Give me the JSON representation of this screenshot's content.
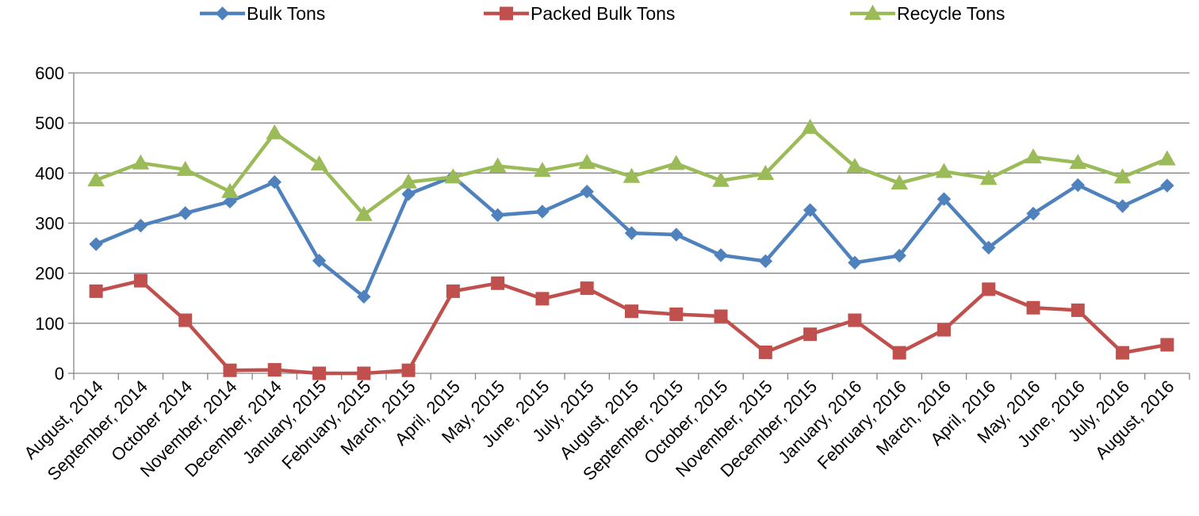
{
  "chart_data": {
    "type": "line",
    "title": "",
    "xlabel": "",
    "ylabel": "",
    "ylim": [
      0,
      600
    ],
    "yticks": [
      0,
      100,
      200,
      300,
      400,
      500,
      600
    ],
    "grid": true,
    "legend_position": "top",
    "categories": [
      "August, 2014",
      "September, 2014",
      "October 2014",
      "November, 2014",
      "December, 2014",
      "January, 2015",
      "February, 2015",
      "March, 2015",
      "April, 2015",
      "May, 2015",
      "June, 2015",
      "July, 2015",
      "August, 2015",
      "September, 2015",
      "October, 2015",
      "November, 2015",
      "December, 2015",
      "January, 2016",
      "February, 2016",
      "March, 2016",
      "April, 2016",
      "May, 2016",
      "June, 2016",
      "July, 2016",
      "August, 2016"
    ],
    "series": [
      {
        "name": "Bulk Tons",
        "color": "#4F81BD",
        "marker": "diamond",
        "values": [
          258,
          295,
          320,
          343,
          382,
          225,
          153,
          358,
          393,
          316,
          323,
          363,
          280,
          277,
          236,
          224,
          326,
          221,
          235,
          348,
          251,
          319,
          376,
          334,
          375
        ]
      },
      {
        "name": "Packed Bulk Tons",
        "color": "#C0504D",
        "marker": "square",
        "values": [
          164,
          185,
          106,
          6,
          7,
          0,
          0,
          6,
          164,
          180,
          149,
          170,
          124,
          118,
          114,
          42,
          78,
          106,
          41,
          87,
          168,
          131,
          126,
          41,
          57
        ]
      },
      {
        "name": "Recycle Tons",
        "color": "#9BBB59",
        "marker": "triangle",
        "values": [
          386,
          420,
          407,
          363,
          480,
          418,
          317,
          382,
          392,
          414,
          405,
          421,
          393,
          419,
          385,
          399,
          491,
          413,
          380,
          403,
          389,
          432,
          421,
          392,
          428
        ]
      }
    ]
  }
}
